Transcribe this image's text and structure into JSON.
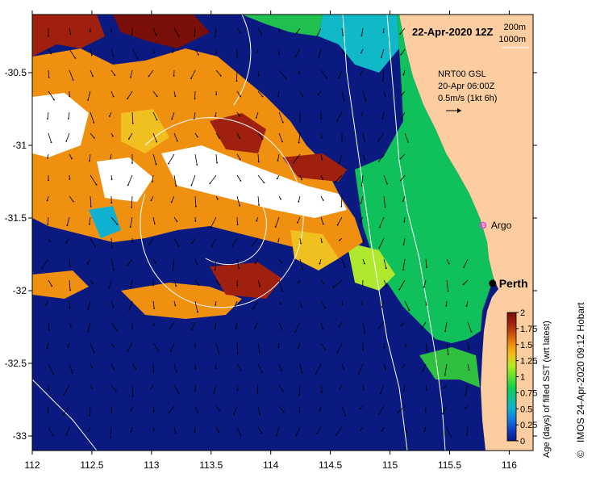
{
  "title": "22-Apr-2020 12Z",
  "contour_legend": {
    "line1": "200m",
    "line2": "1000m"
  },
  "current_legend": {
    "line1": "NRT00 GSL",
    "line2": "20-Apr 06:00Z",
    "line3": "0.5m/s (1kt 6h)"
  },
  "markers": [
    {
      "name": "argo",
      "label": "Argo",
      "lon": 115.78,
      "lat": -31.55,
      "color": "#e040e0"
    },
    {
      "name": "perth",
      "label": "Perth",
      "lon": 115.86,
      "lat": -31.95,
      "color": "#000000"
    }
  ],
  "axes": {
    "x_ticks": [
      "112",
      "112.5",
      "113",
      "113.5",
      "114",
      "114.5",
      "115",
      "115.5",
      "116"
    ],
    "x_values": [
      112,
      112.5,
      113,
      113.5,
      114,
      114.5,
      115,
      115.5,
      116
    ],
    "y_ticks": [
      "-30.5",
      "-31",
      "-31.5",
      "-32",
      "-32.5",
      "-33"
    ],
    "y_values": [
      -30.5,
      -31,
      -31.5,
      -32,
      -32.5,
      -33
    ],
    "lon_range": [
      112,
      116.2
    ],
    "lat_range": [
      -30.1,
      -33.1
    ]
  },
  "colorbar": {
    "label": "Age (days) of filled SST (wrt latest)",
    "ticks": [
      "0",
      "0.25",
      "0.5",
      "0.75",
      "1",
      "1.25",
      "1.5",
      "1.75",
      "2"
    ],
    "values": [
      0,
      0.25,
      0.5,
      0.75,
      1,
      1.25,
      1.5,
      1.75,
      2
    ],
    "colors": [
      "#0a1a80",
      "#0c3ec0",
      "#1478e0",
      "#10b0d0",
      "#10c090",
      "#10d050",
      "#60e030",
      "#b0ec20",
      "#f0c020",
      "#f09010",
      "#c85010",
      "#a02010",
      "#7a0e08"
    ]
  },
  "credit": "IMOS 24-Apr-2020 09:12 Hobart",
  "copyright": "©",
  "colors": {
    "land": "#fbcda0",
    "ocean_old": "#0a1a80",
    "contour": "#ffffff"
  }
}
